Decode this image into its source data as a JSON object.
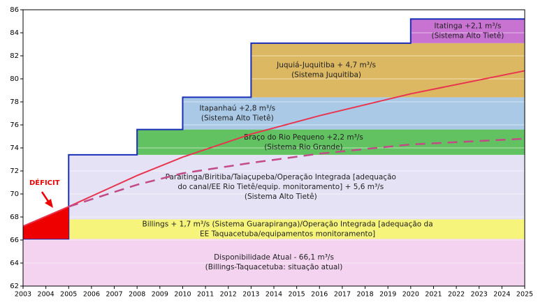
{
  "chart_data": {
    "type": "step-area",
    "xlim": [
      2003,
      2025
    ],
    "xticks": [
      2003,
      2004,
      2005,
      2006,
      2007,
      2008,
      2009,
      2010,
      2011,
      2012,
      2013,
      2014,
      2015,
      2016,
      2017,
      2018,
      2019,
      2020,
      2021,
      2022,
      2023,
      2024,
      2025
    ],
    "ylim": [
      62,
      86
    ],
    "yticks": [
      62,
      64,
      66,
      68,
      70,
      72,
      74,
      76,
      78,
      80,
      82,
      84,
      86
    ],
    "grid": true,
    "base": {
      "value": 66.1,
      "start": 2003,
      "color": "#f3d3f0",
      "label": [
        "Disponibilidade Atual - 66,1 m³/s",
        "(Billings-Taquacetuba: situação atual)"
      ]
    },
    "additions": [
      {
        "start": 2005,
        "value": 1.7,
        "color": "#f6f47a",
        "label": [
          "Billings + 1,7 m³/s (Sistema Guarapiranga)/Operação Integrada  [adequação da",
          "EE Taquacetuba/equipamentos monitoramento]"
        ]
      },
      {
        "start": 2005,
        "value": 5.6,
        "color": "#e4e2f4",
        "label": [
          "Paraitinga/Biritiba/Taiaçupeba/Operação Integrada [adequação",
          "do canal/EE Rio Tietê/equip. monitoramento] + 5,6 m³/s",
          "(Sistema Alto Tietê)"
        ]
      },
      {
        "start": 2008,
        "value": 2.2,
        "color": "#62c262",
        "label": [
          "Braço do Rio Pequeno +2,2 m³/s",
          "(Sistema Rio Grande)"
        ]
      },
      {
        "start": 2010,
        "value": 2.8,
        "color": "#a9c9e6",
        "label": [
          "Itapanhaú +2,8 m³/s",
          "(Sistema Alto Tietê)"
        ]
      },
      {
        "start": 2013,
        "value": 4.7,
        "color": "#ddb862",
        "label": [
          "Juquiá-Juquitiba  + 4,7 m³/s",
          "(Sistema Juquitiba)"
        ]
      },
      {
        "start": 2020,
        "value": 2.1,
        "color": "#c872d2",
        "label": [
          "Itatinga +2,1 m³/s",
          "(Sistema Alto Tietê)"
        ]
      }
    ],
    "outline_color": "#1a2fb8",
    "lines": [
      {
        "color": "#e8344e",
        "dashed": false,
        "x": [
          2003,
          2005,
          2008,
          2010,
          2013,
          2016,
          2020,
          2025
        ],
        "values": [
          67.2,
          68.9,
          71.6,
          73.2,
          75.2,
          76.8,
          78.7,
          80.7
        ]
      },
      {
        "color": "#c24a86",
        "dashed": true,
        "x": [
          2005,
          2008,
          2010,
          2013,
          2016,
          2020,
          2025
        ],
        "values": [
          68.9,
          70.8,
          71.8,
          72.7,
          73.5,
          74.3,
          74.8
        ]
      }
    ],
    "deficit": {
      "label": "DÉFICIT",
      "color": "#ee0000"
    }
  }
}
